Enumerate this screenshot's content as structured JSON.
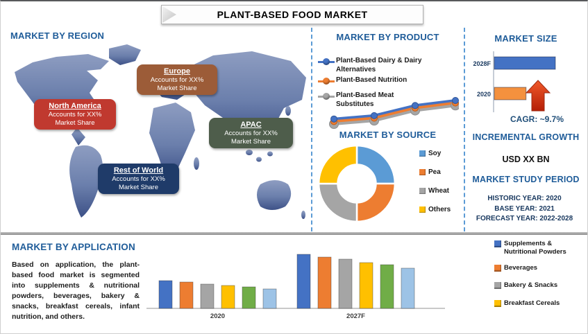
{
  "title": "PLANT-BASED FOOD MARKET",
  "region": {
    "heading": "MARKET BY REGION",
    "callouts": [
      {
        "name": "North America",
        "line1": "Accounts for XX%",
        "line2": "Market Share",
        "color": "#C0392F"
      },
      {
        "name": "Europe",
        "line1": "Accounts for XX%",
        "line2": "Market Share",
        "color": "#9C5C38"
      },
      {
        "name": "APAC",
        "line1": "Accounts for XX%",
        "line2": "Market Share",
        "color": "#4E5D4B"
      },
      {
        "name": "Rest of World",
        "line1": "Accounts for XX%",
        "line2": "Market Share",
        "color": "#1F3B69"
      }
    ]
  },
  "product": {
    "heading": "MARKET BY PRODUCT"
  },
  "source": {
    "heading": "MARKET BY SOURCE"
  },
  "market_size": {
    "heading": "MARKET SIZE",
    "cagr_label": "CAGR: ~9.7%"
  },
  "incremental_growth": {
    "heading": "INCREMENTAL GROWTH",
    "value": "USD XX BN"
  },
  "study_period": {
    "heading": "MARKET STUDY PERIOD",
    "lines": [
      "HISTORIC YEAR: 2020",
      "BASE YEAR: 2021",
      "FORECAST YEAR: 2022-2028"
    ]
  },
  "application": {
    "heading": "MARKET BY APPLICATION",
    "paragraph": "Based on application, the plant-based food market is segmented into supplements & nutritional powders, beverages, bakery & snacks, breakfast cereals, infant nutrition, and others."
  },
  "chart_data": [
    {
      "name": "market-size",
      "type": "bar",
      "orientation": "horizontal",
      "categories": [
        "2028F",
        "2020"
      ],
      "values": [
        100,
        52
      ],
      "colors": [
        "#4472C4",
        "#F4913E"
      ],
      "title": "MARKET SIZE",
      "annotations": [
        "CAGR: ~9.7%"
      ],
      "axes_shown": false
    },
    {
      "name": "market-by-product",
      "type": "line",
      "x": [
        1,
        2,
        3,
        4
      ],
      "x_labels_shown": false,
      "series": [
        {
          "name": "Plant-Based Dairy & Dairy Alternatives",
          "color": "#4472C4",
          "values": [
            26,
            30,
            42,
            48
          ]
        },
        {
          "name": "Plant-Based Nutrition",
          "color": "#ED7D31",
          "values": [
            23,
            27,
            39,
            45
          ]
        },
        {
          "name": "Plant-Based Meat Substitutes",
          "color": "#A5A5A5",
          "values": [
            20,
            24,
            36,
            42
          ]
        }
      ],
      "title": "MARKET BY PRODUCT",
      "legend_position": "top-left",
      "axes_shown": false
    },
    {
      "name": "market-by-source",
      "type": "pie",
      "donut": true,
      "labels": [
        "Soy",
        "Pea",
        "Wheat",
        "Others"
      ],
      "values": [
        25,
        25,
        25,
        25
      ],
      "colors": [
        "#5B9BD5",
        "#ED7D31",
        "#A5A5A5",
        "#FFC000"
      ],
      "title": "MARKET BY SOURCE",
      "legend_position": "right"
    },
    {
      "name": "market-by-application",
      "type": "bar",
      "categories": [
        "2020",
        "2027F"
      ],
      "series": [
        {
          "name": "Supplements & Nutritional Powders",
          "color": "#4472C4",
          "values": [
            40,
            78
          ]
        },
        {
          "name": "Beverages",
          "color": "#ED7D31",
          "values": [
            38,
            74
          ]
        },
        {
          "name": "Bakery & Snacks",
          "color": "#A5A5A5",
          "values": [
            35,
            71
          ]
        },
        {
          "name": "Breakfast Cereals",
          "color": "#FFC000",
          "values": [
            33,
            66
          ]
        },
        {
          "name": "",
          "color": "#70AD47",
          "values": [
            31,
            63
          ]
        },
        {
          "name": "",
          "color": "#9DC3E6",
          "values": [
            28,
            58
          ]
        }
      ],
      "title": "MARKET BY APPLICATION",
      "legend_position": "right",
      "legend_visible_labels": [
        "Supplements & Nutritional Powders",
        "Beverages",
        "Bakery & Snacks",
        "Breakfast Cereals"
      ],
      "axes_shown": false
    }
  ]
}
